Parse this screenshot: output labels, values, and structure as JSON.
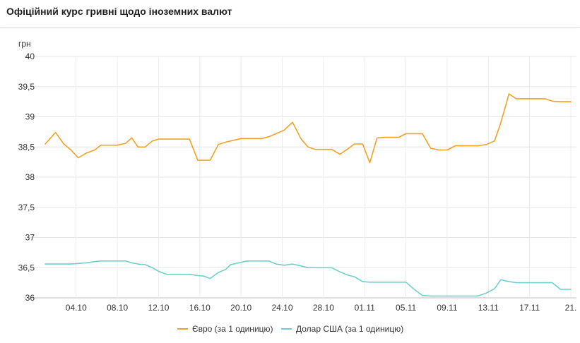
{
  "header": {
    "title": "Офіційний курс гривні щодо іноземних валют"
  },
  "chart_data": {
    "type": "line",
    "title": "Офіційний курс гривні щодо іноземних валют",
    "ylabel": "грн",
    "ylim": [
      36,
      40
    ],
    "yticks": [
      36,
      36.5,
      37,
      37.5,
      38,
      38.5,
      39,
      39.5,
      40
    ],
    "yticklabels": [
      "36",
      "36,5",
      "37",
      "37,5",
      "38",
      "38,5",
      "39",
      "39,5",
      "40"
    ],
    "xticklabels": [
      "04.10",
      "08.10",
      "12.10",
      "16.10",
      "20.10",
      "24.10",
      "28.10",
      "01.11",
      "05.11",
      "09.11",
      "13.11",
      "17.11",
      "21."
    ],
    "xtick_positions": [
      3,
      7,
      11,
      15,
      19,
      23,
      27,
      31,
      35,
      39,
      43,
      47,
      51
    ],
    "grid": "vertical",
    "legend": "bottom-center",
    "series": [
      {
        "name": "Євро (за 1 одиницю)",
        "color": "#f0a225",
        "x": [
          0,
          1,
          1.8,
          2.5,
          3.2,
          4,
          4.8,
          5.4,
          6,
          7,
          7.8,
          8.4,
          9,
          9.7,
          10.4,
          11,
          11.8,
          12.5,
          13.2,
          14,
          14.8,
          15.4,
          16,
          16.8,
          17.5,
          18,
          19,
          19.6,
          20.3,
          21,
          21.7,
          22.4,
          23.2,
          24,
          24.8,
          25.5,
          26.2,
          27,
          27.8,
          28.6,
          29.3,
          30,
          30.8,
          31.5,
          32.2,
          33,
          33.6,
          34.3,
          35,
          35.8,
          36.6,
          37.4,
          38.2,
          39,
          39.8,
          40.6,
          41.3,
          42,
          42.8,
          43.6,
          44.2,
          45,
          45.7,
          46.4,
          47.1,
          47.8,
          48.5,
          49.2,
          50,
          50.6,
          51
        ],
        "values": [
          38.55,
          38.74,
          38.55,
          38.45,
          38.32,
          38.4,
          38.45,
          38.53,
          38.53,
          38.53,
          38.56,
          38.65,
          38.5,
          38.5,
          38.6,
          38.63,
          38.63,
          38.63,
          38.63,
          38.63,
          38.28,
          38.28,
          38.28,
          38.54,
          38.58,
          38.6,
          38.64,
          38.64,
          38.64,
          38.64,
          38.67,
          38.72,
          38.78,
          38.91,
          38.64,
          38.5,
          38.46,
          38.46,
          38.46,
          38.38,
          38.46,
          38.55,
          38.55,
          38.24,
          38.65,
          38.66,
          38.66,
          38.66,
          38.72,
          38.72,
          38.72,
          38.48,
          38.45,
          38.45,
          38.52,
          38.52,
          38.52,
          38.52,
          38.54,
          38.6,
          38.9,
          39.38,
          39.3,
          39.3,
          39.3,
          39.3,
          39.3,
          39.26,
          39.25,
          39.25,
          39.25
        ]
      },
      {
        "name": "Долар США (за 1 одиницю)",
        "color": "#6fcfcc",
        "x": [
          0,
          1,
          1.8,
          2.5,
          3.2,
          4,
          4.8,
          5.4,
          6,
          7,
          7.8,
          8.4,
          9,
          9.7,
          10.4,
          11,
          11.8,
          12.5,
          13.2,
          14,
          14.8,
          15.4,
          16,
          16.8,
          17.5,
          18,
          19,
          19.6,
          20.3,
          21,
          21.7,
          22.4,
          23.2,
          24,
          24.8,
          25.5,
          26.2,
          27,
          27.8,
          28.6,
          29.3,
          30,
          30.8,
          31.5,
          32.2,
          33,
          33.6,
          34.3,
          35,
          35.8,
          36.6,
          37.4,
          38.2,
          39,
          39.8,
          40.6,
          41.3,
          42,
          42.8,
          43.6,
          44.2,
          45,
          45.7,
          46.4,
          47.1,
          47.8,
          48.5,
          49.2,
          50,
          50.6,
          51
        ],
        "values": [
          36.56,
          36.56,
          36.56,
          36.56,
          36.57,
          36.58,
          36.6,
          36.61,
          36.61,
          36.61,
          36.61,
          36.58,
          36.56,
          36.55,
          36.5,
          36.44,
          36.39,
          36.39,
          36.39,
          36.39,
          36.37,
          36.36,
          36.32,
          36.42,
          36.47,
          36.55,
          36.59,
          36.61,
          36.61,
          36.61,
          36.61,
          36.56,
          36.54,
          36.56,
          36.53,
          36.5,
          36.5,
          36.5,
          36.5,
          36.43,
          36.38,
          36.35,
          36.27,
          36.26,
          36.26,
          36.26,
          36.26,
          36.26,
          36.26,
          36.14,
          36.04,
          36.03,
          36.03,
          36.03,
          36.03,
          36.03,
          36.03,
          36.03,
          36.08,
          36.15,
          36.3,
          36.27,
          36.25,
          36.25,
          36.25,
          36.25,
          36.25,
          36.25,
          36.14,
          36.14,
          36.14
        ]
      }
    ]
  }
}
